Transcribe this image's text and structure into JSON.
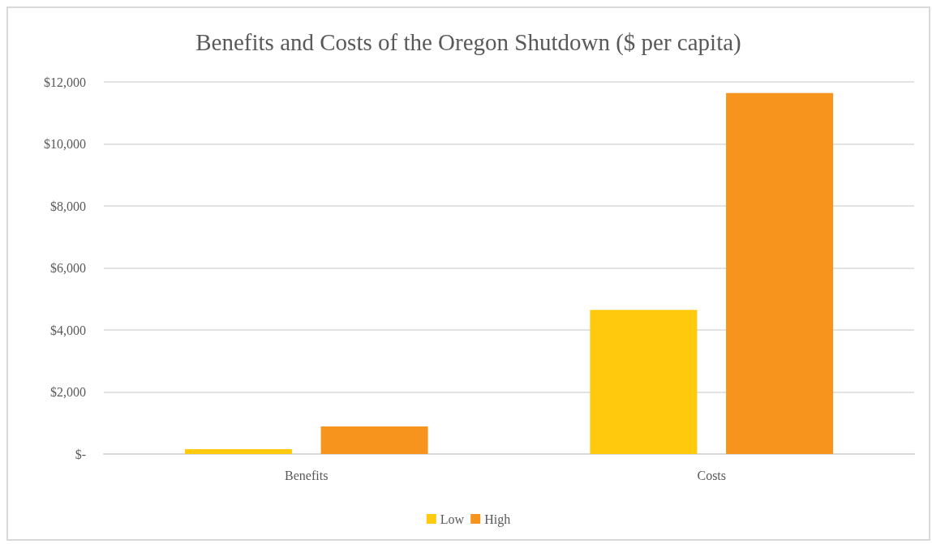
{
  "chart_data": {
    "type": "bar",
    "title": "Benefits and Costs of the Oregon Shutdown ($ per capita)",
    "categories": [
      "Benefits",
      "Costs"
    ],
    "series": [
      {
        "name": "Low",
        "color": "#ffc90e",
        "values": [
          160,
          4650
        ]
      },
      {
        "name": "High",
        "color": "#f7941e",
        "values": [
          890,
          11640
        ]
      }
    ],
    "ylim": [
      0,
      12000
    ],
    "yticks": [
      {
        "value": 0,
        "label": "$-"
      },
      {
        "value": 2000,
        "label": "$2,000"
      },
      {
        "value": 4000,
        "label": "$4,000"
      },
      {
        "value": 6000,
        "label": "$6,000"
      },
      {
        "value": 8000,
        "label": "$8,000"
      },
      {
        "value": 10000,
        "label": "$10,000"
      },
      {
        "value": 12000,
        "label": "$12,000"
      }
    ],
    "grid": "y",
    "legend": "bottom"
  }
}
